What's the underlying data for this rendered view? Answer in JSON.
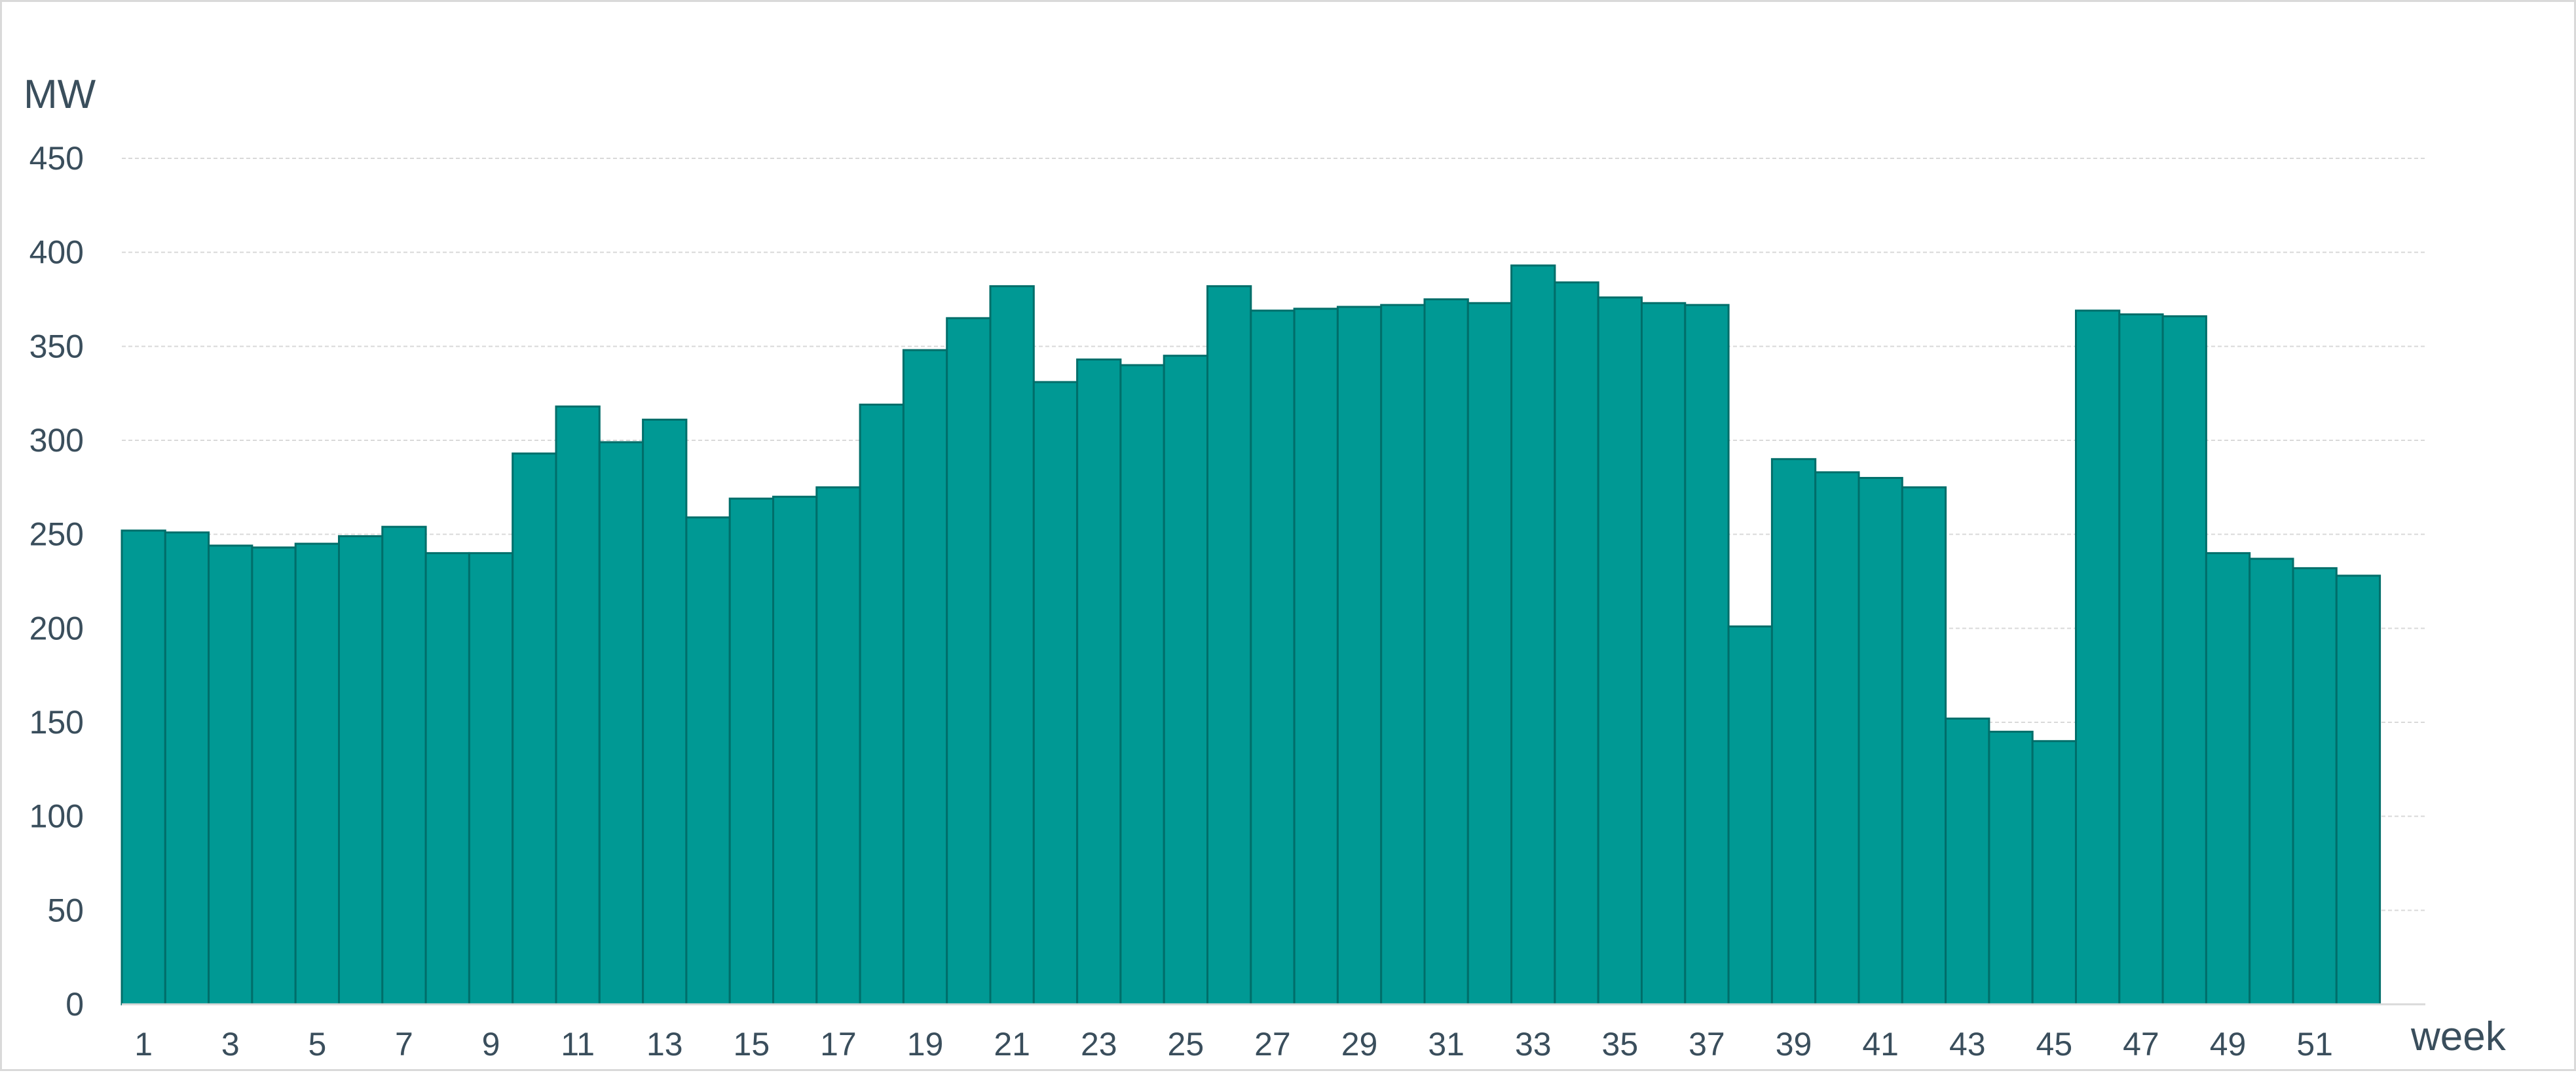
{
  "chart_data": {
    "type": "bar",
    "xlabel": "week",
    "ylabel": "MW",
    "ylim": [
      0,
      450
    ],
    "yticks": [
      0,
      50,
      100,
      150,
      200,
      250,
      300,
      350,
      400,
      450
    ],
    "grid": true,
    "legend": "none",
    "bar_color": "#009994",
    "bar_edge_color": "#006e6a",
    "categories": [
      "1",
      "2",
      "3",
      "4",
      "5",
      "6",
      "7",
      "8",
      "9",
      "10",
      "11",
      "12",
      "13",
      "14",
      "15",
      "16",
      "17",
      "18",
      "19",
      "20",
      "21",
      "22",
      "23",
      "24",
      "25",
      "26",
      "27",
      "28",
      "29",
      "30",
      "31",
      "32",
      "33",
      "34",
      "35",
      "36",
      "37",
      "38",
      "39",
      "40",
      "41",
      "42",
      "43",
      "44",
      "45",
      "46",
      "47",
      "48",
      "49",
      "50",
      "51",
      "52"
    ],
    "xtick_labels": [
      "1",
      "3",
      "5",
      "7",
      "9",
      "11",
      "13",
      "15",
      "17",
      "19",
      "21",
      "23",
      "25",
      "27",
      "29",
      "31",
      "33",
      "35",
      "37",
      "39",
      "41",
      "43",
      "45",
      "47",
      "49",
      "51"
    ],
    "values": [
      252,
      251,
      244,
      243,
      245,
      249,
      254,
      240,
      240,
      293,
      318,
      299,
      311,
      259,
      269,
      270,
      275,
      319,
      348,
      365,
      382,
      331,
      343,
      340,
      345,
      382,
      369,
      370,
      371,
      372,
      375,
      373,
      393,
      384,
      376,
      373,
      372,
      201,
      290,
      283,
      280,
      275,
      152,
      145,
      140,
      369,
      367,
      366,
      240,
      237,
      232,
      228
    ]
  }
}
